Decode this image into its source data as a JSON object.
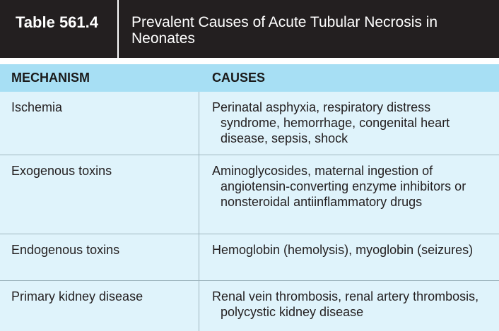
{
  "table": {
    "number": "Table 561.4",
    "title": "Prevalent Causes of Acute Tubular Necrosis in Neonates",
    "headers": {
      "mechanism": "MECHANISM",
      "causes": "CAUSES"
    },
    "rows": [
      {
        "mechanism": "Ischemia",
        "causes": "Perinatal asphyxia, respiratory distress syndrome, hemorrhage, congenital heart disease, sepsis, shock"
      },
      {
        "mechanism": "Exogenous toxins",
        "causes": "Aminoglycosides, maternal ingestion of angiotensin-converting enzyme inhibitors or nonsteroidal antiinflammatory drugs"
      },
      {
        "mechanism": "Endogenous toxins",
        "causes": "Hemoglobin (hemolysis), myoglobin (seizures)"
      },
      {
        "mechanism": "Primary kidney disease",
        "causes": "Renal vein thrombosis, renal artery thrombosis, polycystic kidney disease"
      }
    ]
  },
  "colors": {
    "title_bar": "#231f20",
    "header_row": "#a7dff4",
    "body_rows": "#dff3fb",
    "divider": "#9fb6bf"
  }
}
